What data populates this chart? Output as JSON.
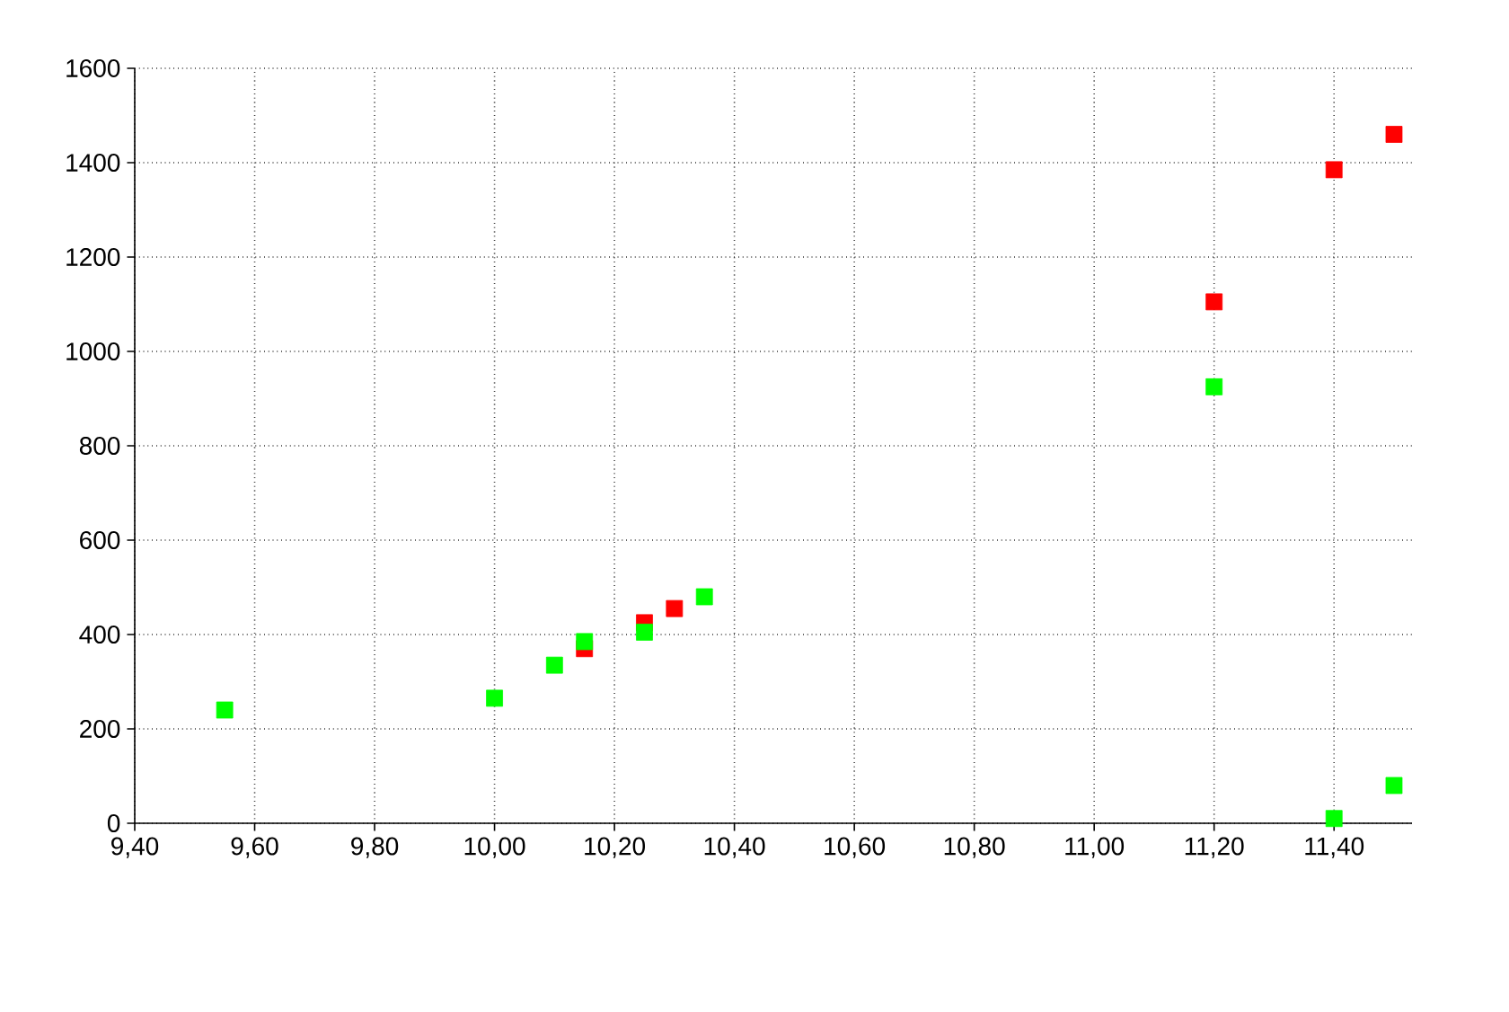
{
  "chart_data": {
    "type": "scatter",
    "marker": "square",
    "grid": true,
    "xlim": [
      9.4,
      11.53
    ],
    "ylim": [
      0,
      1600
    ],
    "xticks": [
      {
        "value": 9.4,
        "label": "9,40"
      },
      {
        "value": 9.6,
        "label": "9,60"
      },
      {
        "value": 9.8,
        "label": "9,80"
      },
      {
        "value": 10.0,
        "label": "10,00"
      },
      {
        "value": 10.2,
        "label": "10,20"
      },
      {
        "value": 10.4,
        "label": "10,40"
      },
      {
        "value": 10.6,
        "label": "10,60"
      },
      {
        "value": 10.8,
        "label": "10,80"
      },
      {
        "value": 11.0,
        "label": "11,00"
      },
      {
        "value": 11.2,
        "label": "11,20"
      },
      {
        "value": 11.4,
        "label": "11,40"
      }
    ],
    "yticks": [
      0,
      200,
      400,
      600,
      800,
      1000,
      1200,
      1400,
      1600
    ],
    "series": [
      {
        "color": "#ff0000",
        "x": [
          10.15,
          10.25,
          10.3,
          11.2,
          11.4,
          11.5
        ],
        "values": [
          370,
          425,
          455,
          1105,
          1385,
          1460
        ]
      },
      {
        "color": "#00ff00",
        "x": [
          9.55,
          10.0,
          10.1,
          10.15,
          10.25,
          10.35,
          11.2,
          11.4,
          11.5
        ],
        "values": [
          240,
          265,
          335,
          385,
          405,
          480,
          925,
          10,
          80
        ]
      }
    ]
  }
}
